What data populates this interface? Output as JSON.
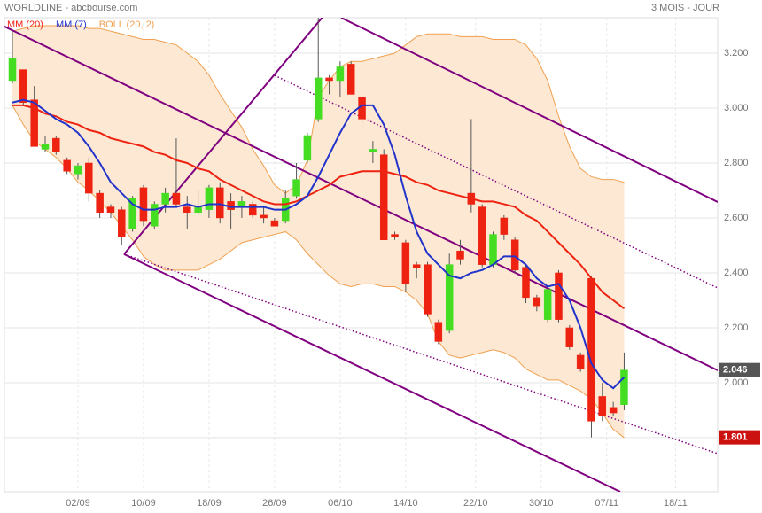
{
  "chart_data": {
    "type": "candlestick",
    "title": "WORLDLINE - abcbourse.com",
    "subtitle": "3 MOIS - JOUR",
    "xlim": [
      -0.73,
      64.56
    ],
    "ylim": [
      1.603,
      3.329
    ],
    "xticks": [
      {
        "value": 6,
        "label": "02/09"
      },
      {
        "value": 12,
        "label": "10/09"
      },
      {
        "value": 18,
        "label": "18/09"
      },
      {
        "value": 24,
        "label": "26/09"
      },
      {
        "value": 30,
        "label": "06/10"
      },
      {
        "value": 36,
        "label": "14/10"
      },
      {
        "value": 42.4,
        "label": "22/10"
      },
      {
        "value": 48.4,
        "label": "30/10"
      },
      {
        "value": 54.4,
        "label": "07/11"
      },
      {
        "value": 60.7,
        "label": "18/11"
      }
    ],
    "yticks": [
      {
        "value": 1.8,
        "label": "1.800"
      },
      {
        "value": 2.0,
        "label": "2.000"
      },
      {
        "value": 2.2,
        "label": "2.200"
      },
      {
        "value": 2.4,
        "label": "2.400"
      },
      {
        "value": 2.6,
        "label": "2.600"
      },
      {
        "value": 2.8,
        "label": "2.800"
      },
      {
        "value": 3.0,
        "label": "3.000"
      },
      {
        "value": 3.2,
        "label": "3.200"
      }
    ],
    "grid": true,
    "up_color": "#44dd22",
    "down_color": "#ee2211",
    "candles": {
      "open": [
        3.1,
        3.14,
        3.03,
        2.85,
        2.89,
        2.81,
        2.76,
        2.8,
        2.69,
        2.64,
        2.63,
        2.56,
        2.71,
        2.57,
        2.65,
        2.69,
        2.64,
        2.62,
        2.63,
        2.71,
        2.66,
        2.64,
        2.65,
        2.61,
        2.59,
        2.59,
        2.68,
        2.81,
        2.96,
        3.11,
        3.1,
        3.16,
        3.04,
        2.84,
        2.83,
        2.54,
        2.51,
        2.43,
        2.43,
        2.22,
        2.19,
        2.48,
        2.69,
        2.64,
        2.43,
        2.6,
        2.52,
        2.42,
        2.31,
        2.23,
        2.4,
        2.2,
        2.1,
        2.38,
        1.95,
        1.91,
        1.92
      ],
      "high": [
        3.28,
        3.14,
        3.08,
        2.9,
        2.9,
        2.82,
        2.8,
        2.82,
        2.7,
        2.65,
        2.64,
        2.68,
        2.72,
        2.66,
        2.71,
        2.89,
        2.68,
        2.7,
        2.72,
        2.73,
        2.69,
        2.68,
        2.66,
        2.64,
        2.6,
        2.7,
        2.8,
        2.91,
        3.33,
        3.12,
        3.17,
        3.17,
        3.05,
        2.88,
        2.85,
        2.55,
        2.52,
        2.44,
        2.44,
        2.23,
        2.47,
        2.52,
        2.96,
        2.65,
        2.55,
        2.61,
        2.53,
        2.43,
        2.32,
        2.35,
        2.41,
        2.21,
        2.11,
        2.39,
        2.0,
        1.93,
        2.11
      ],
      "low": [
        3.09,
        3.01,
        2.86,
        2.84,
        2.83,
        2.76,
        2.74,
        2.66,
        2.6,
        2.6,
        2.5,
        2.55,
        2.57,
        2.56,
        2.62,
        2.64,
        2.56,
        2.61,
        2.6,
        2.58,
        2.56,
        2.6,
        2.6,
        2.58,
        2.57,
        2.58,
        2.67,
        2.8,
        2.95,
        3.05,
        3.04,
        3.05,
        2.92,
        2.8,
        2.52,
        2.52,
        2.33,
        2.38,
        2.24,
        2.14,
        2.18,
        2.43,
        2.62,
        2.42,
        2.42,
        2.52,
        2.4,
        2.29,
        2.26,
        2.22,
        2.22,
        2.12,
        2.04,
        1.801,
        1.86,
        1.88,
        1.9
      ],
      "close": [
        3.18,
        3.02,
        2.86,
        2.87,
        2.84,
        2.77,
        2.79,
        2.69,
        2.62,
        2.62,
        2.53,
        2.67,
        2.59,
        2.65,
        2.69,
        2.65,
        2.62,
        2.64,
        2.71,
        2.6,
        2.63,
        2.66,
        2.61,
        2.6,
        2.57,
        2.67,
        2.74,
        2.9,
        3.11,
        3.1,
        3.15,
        3.05,
        2.96,
        2.85,
        2.52,
        2.53,
        2.36,
        2.42,
        2.25,
        2.15,
        2.43,
        2.45,
        2.65,
        2.43,
        2.54,
        2.54,
        2.41,
        2.31,
        2.28,
        2.34,
        2.23,
        2.13,
        2.05,
        1.86,
        1.88,
        1.89,
        2.046
      ]
    },
    "bollinger": {
      "name": "BOLL (20, 2)",
      "color": "#f0a050",
      "fill": "#fde9d3",
      "upper": [
        3.28,
        3.29,
        3.3,
        3.3,
        3.3,
        3.3,
        3.3,
        3.29,
        3.29,
        3.28,
        3.27,
        3.26,
        3.25,
        3.25,
        3.24,
        3.23,
        3.2,
        3.17,
        3.12,
        3.05,
        2.99,
        2.93,
        2.85,
        2.79,
        2.72,
        2.69,
        2.72,
        2.81,
        3.04,
        3.1,
        3.15,
        3.17,
        3.17,
        3.18,
        3.19,
        3.2,
        3.23,
        3.26,
        3.27,
        3.27,
        3.27,
        3.26,
        3.26,
        3.26,
        3.25,
        3.25,
        3.25,
        3.23,
        3.18,
        3.1,
        2.97,
        2.86,
        2.78,
        2.75,
        2.74,
        2.74,
        2.73
      ],
      "lower": [
        3.01,
        2.94,
        2.88,
        2.85,
        2.82,
        2.78,
        2.73,
        2.7,
        2.66,
        2.62,
        2.57,
        2.52,
        2.46,
        2.43,
        2.41,
        2.41,
        2.41,
        2.41,
        2.43,
        2.45,
        2.48,
        2.51,
        2.52,
        2.53,
        2.54,
        2.55,
        2.52,
        2.47,
        2.43,
        2.39,
        2.36,
        2.35,
        2.36,
        2.36,
        2.35,
        2.35,
        2.33,
        2.3,
        2.25,
        2.15,
        2.1,
        2.09,
        2.1,
        2.11,
        2.12,
        2.11,
        2.09,
        2.05,
        2.03,
        2.01,
        2.01,
        1.99,
        1.97,
        1.94,
        1.89,
        1.83,
        1.8
      ]
    },
    "series": [
      {
        "name": "MM (20)",
        "color": "#ee2211",
        "values": [
          3.01,
          3.01,
          3.0,
          2.98,
          2.97,
          2.95,
          2.94,
          2.92,
          2.91,
          2.89,
          2.88,
          2.87,
          2.86,
          2.84,
          2.83,
          2.81,
          2.8,
          2.78,
          2.77,
          2.74,
          2.72,
          2.7,
          2.68,
          2.66,
          2.65,
          2.65,
          2.66,
          2.68,
          2.7,
          2.72,
          2.75,
          2.76,
          2.77,
          2.77,
          2.77,
          2.76,
          2.75,
          2.73,
          2.72,
          2.7,
          2.69,
          2.68,
          2.67,
          2.66,
          2.66,
          2.65,
          2.64,
          2.61,
          2.59,
          2.55,
          2.51,
          2.47,
          2.43,
          2.38,
          2.33,
          2.3,
          2.27
        ]
      },
      {
        "name": "MM (7)",
        "color": "#2233cc",
        "values": [
          3.02,
          3.03,
          3.02,
          2.99,
          2.96,
          2.94,
          2.91,
          2.86,
          2.8,
          2.73,
          2.69,
          2.65,
          2.63,
          2.63,
          2.64,
          2.64,
          2.65,
          2.64,
          2.65,
          2.65,
          2.64,
          2.64,
          2.64,
          2.64,
          2.63,
          2.63,
          2.65,
          2.68,
          2.75,
          2.83,
          2.91,
          2.98,
          3.01,
          3.01,
          2.94,
          2.83,
          2.68,
          2.55,
          2.47,
          2.43,
          2.39,
          2.38,
          2.4,
          2.41,
          2.43,
          2.46,
          2.46,
          2.43,
          2.38,
          2.35,
          2.36,
          2.3,
          2.2,
          2.07,
          2.01,
          1.98,
          2.02
        ]
      }
    ],
    "trendlines": [
      {
        "x": [
          30.09,
          64.56
        ],
        "y": [
          3.329,
          2.658
        ],
        "style": "solid"
      },
      {
        "x": [
          24.0,
          64.56
        ],
        "y": [
          3.119,
          2.345
        ],
        "style": "dotted"
      },
      {
        "x": [
          -0.73,
          64.56
        ],
        "y": [
          3.297,
          2.045
        ],
        "style": "solid"
      },
      {
        "x": [
          10.22,
          28.47
        ],
        "y": [
          2.468,
          3.335
        ],
        "style": "solid"
      },
      {
        "x": [
          10.22,
          64.56
        ],
        "y": [
          2.468,
          1.742
        ],
        "style": "dotted"
      },
      {
        "x": [
          10.22,
          55.64
        ],
        "y": [
          2.468,
          1.603
        ],
        "style": "solid"
      }
    ],
    "trend_color": "#800080",
    "price_tags": [
      {
        "value": 2.046,
        "color": "#555555"
      },
      {
        "value": 1.801,
        "color": "#cc1111"
      }
    ]
  }
}
